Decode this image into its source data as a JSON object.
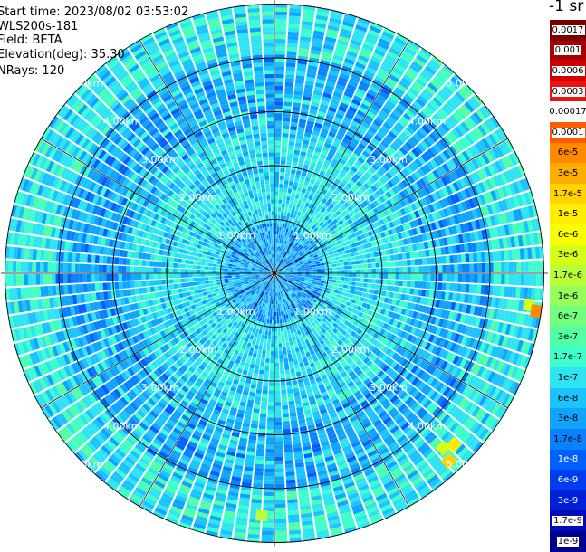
{
  "info": {
    "start_time": "Start time: 2023/08/02 03:53:02",
    "instrument": "WLS200s-181",
    "field": "Field: BETA",
    "elevation": "Elevation(deg): 35.30",
    "nrays": "NRays: 120"
  },
  "units_label": "-1 sr",
  "range_rings": [
    "1.00km",
    "2.00km",
    "3.00km",
    "4.00km",
    "5.00km"
  ],
  "colorbar": {
    "segments": [
      {
        "label": "0.0017",
        "color": "#7a0000",
        "text_color": "#000000",
        "boxed": true
      },
      {
        "label": "0.001",
        "color": "#a80000",
        "text_color": "#000000",
        "boxed": true
      },
      {
        "label": "0.0006",
        "color": "#d20000",
        "text_color": "#000000",
        "boxed": true
      },
      {
        "label": "0.0003",
        "color": "#f01010",
        "text_color": "#000000",
        "boxed": true
      },
      {
        "label": "0.00017",
        "color": "#ffffff",
        "text_color": "#000000",
        "boxed": false
      },
      {
        "label": "0.0001",
        "color": "#ff5a00",
        "text_color": "#000000",
        "boxed": true
      },
      {
        "label": "6e-5",
        "color": "#ff8a00",
        "text_color": "#000000",
        "boxed": false
      },
      {
        "label": "3e-5",
        "color": "#ffae00",
        "text_color": "#000000",
        "boxed": false
      },
      {
        "label": "1.7e-5",
        "color": "#ffd200",
        "text_color": "#000000",
        "boxed": false
      },
      {
        "label": "1e-5",
        "color": "#ffee00",
        "text_color": "#000000",
        "boxed": false
      },
      {
        "label": "6e-6",
        "color": "#f8ff00",
        "text_color": "#000000",
        "boxed": false
      },
      {
        "label": "3e-6",
        "color": "#d6ff18",
        "text_color": "#000000",
        "boxed": false
      },
      {
        "label": "1.7e-6",
        "color": "#b8ff3a",
        "text_color": "#000000",
        "boxed": false
      },
      {
        "label": "1e-6",
        "color": "#96ff5c",
        "text_color": "#000000",
        "boxed": false
      },
      {
        "label": "6e-7",
        "color": "#72ff80",
        "text_color": "#000000",
        "boxed": false
      },
      {
        "label": "3e-7",
        "color": "#52ffa6",
        "text_color": "#000000",
        "boxed": false
      },
      {
        "label": "1.7e-7",
        "color": "#3cffcc",
        "text_color": "#000000",
        "boxed": false
      },
      {
        "label": "1e-7",
        "color": "#2ee4f2",
        "text_color": "#000000",
        "boxed": false
      },
      {
        "label": "6e-8",
        "color": "#1cc4ff",
        "text_color": "#000000",
        "boxed": false
      },
      {
        "label": "3e-8",
        "color": "#10a4ff",
        "text_color": "#000000",
        "boxed": false
      },
      {
        "label": "1.7e-8",
        "color": "#0a82ff",
        "text_color": "#000000",
        "boxed": false
      },
      {
        "label": "1e-8",
        "color": "#0060ff",
        "text_color": "#ffffff",
        "boxed": false
      },
      {
        "label": "6e-9",
        "color": "#003cf0",
        "text_color": "#ffffff",
        "boxed": false
      },
      {
        "label": "3e-9",
        "color": "#0020d8",
        "text_color": "#ffffff",
        "boxed": false
      },
      {
        "label": "1.7e-9",
        "color": "#000cb8",
        "text_color": "#ffffff",
        "boxed": true
      },
      {
        "label": "1e-9",
        "color": "#000090",
        "text_color": "#ffffff",
        "boxed": true
      }
    ]
  }
}
